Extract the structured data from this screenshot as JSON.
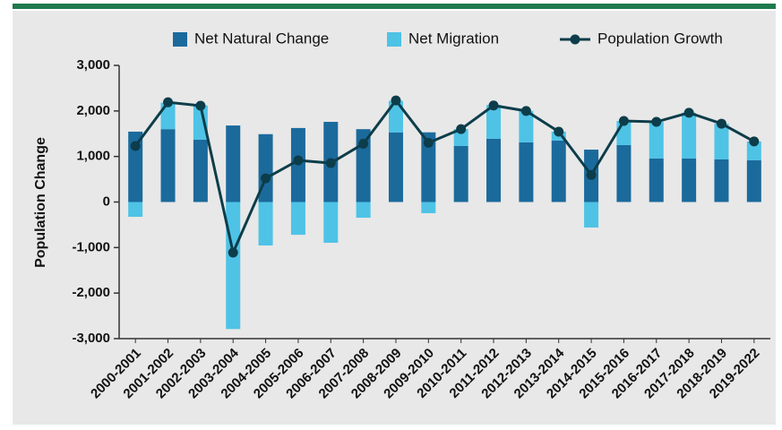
{
  "chart_data": {
    "type": "bar",
    "y_label": "Population Change",
    "legend": "top",
    "categories": [
      "2000-2001",
      "2001-2002",
      "2002-2003",
      "2003-2004",
      "2004-2005",
      "2005-2006",
      "2006-2007",
      "2007-2008",
      "2008-2009",
      "2009-2010",
      "2010-2011",
      "2011-2012",
      "2012-2013",
      "2013-2014",
      "2014-2015",
      "2015-2016",
      "2016-2017",
      "2017-2018",
      "2018-2019",
      "2019-2022"
    ],
    "series": [
      {
        "name": "Net Natural Change",
        "type": "bar",
        "color": "#1b6a9c",
        "values": [
          1545,
          1600,
          1370,
          1680,
          1490,
          1625,
          1760,
          1600,
          1530,
          1530,
          1230,
          1390,
          1310,
          1350,
          1150,
          1250,
          955,
          955,
          935,
          915
        ]
      },
      {
        "name": "Net Migration",
        "type": "bar",
        "color": "#4ec3e6",
        "values": [
          -325,
          580,
          750,
          -2790,
          -955,
          -720,
          -895,
          -345,
          690,
          -245,
          370,
          740,
          690,
          195,
          -560,
          530,
          805,
          1005,
          785,
          415
        ]
      },
      {
        "name": "Population Growth",
        "type": "line",
        "color": "#0d3d4a",
        "values": [
          1230,
          2190,
          2115,
          -1110,
          520,
          915,
          855,
          1280,
          2230,
          1300,
          1600,
          2120,
          2000,
          1545,
          595,
          1780,
          1760,
          1960,
          1720,
          1330
        ]
      }
    ],
    "ylim": [
      -3000,
      3000
    ],
    "yticks": [
      {
        "value": -3000,
        "label": "-3,000"
      },
      {
        "value": -2000,
        "label": "-2,000"
      },
      {
        "value": -1000,
        "label": "-1,000"
      },
      0,
      {
        "value": 1000,
        "label": "1,000"
      },
      {
        "value": 2000,
        "label": "2,000"
      },
      {
        "value": 3000,
        "label": "3,000"
      }
    ]
  }
}
